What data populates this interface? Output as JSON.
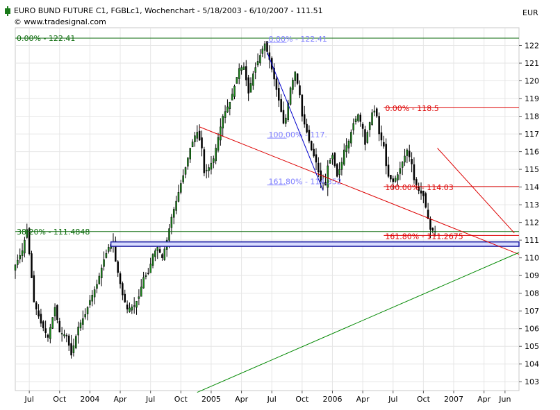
{
  "header": {
    "title": "EURO BUND FUTURE C1, FGBLc1, Wochenchart - 5/18/2003 - 6/10/2007 - 111.51",
    "source": "© www.tradesignal.com",
    "currency": "EUR"
  },
  "chart_data": {
    "type": "candlestick",
    "x_ticks": [
      {
        "label": "Jul",
        "week": 6
      },
      {
        "label": "Oct",
        "week": 19
      },
      {
        "label": "2004",
        "week": 32
      },
      {
        "label": "Apr",
        "week": 45
      },
      {
        "label": "Jul",
        "week": 58
      },
      {
        "label": "Oct",
        "week": 71
      },
      {
        "label": "2005",
        "week": 84
      },
      {
        "label": "Apr",
        "week": 97
      },
      {
        "label": "Jul",
        "week": 110
      },
      {
        "label": "Oct",
        "week": 123
      },
      {
        "label": "2006",
        "week": 136
      },
      {
        "label": "Apr",
        "week": 149
      },
      {
        "label": "Jul",
        "week": 162
      },
      {
        "label": "Oct",
        "week": 175
      },
      {
        "label": "2007",
        "week": 188
      },
      {
        "label": "Apr",
        "week": 201
      },
      {
        "label": "Jun",
        "week": 210
      }
    ],
    "y_ticks": [
      103,
      104,
      105,
      106,
      107,
      108,
      109,
      110,
      111,
      112,
      113,
      114,
      115,
      116,
      117,
      118,
      119,
      120,
      121,
      122
    ],
    "ylim": [
      102.5,
      123.0
    ],
    "xlim": [
      0,
      216
    ],
    "grid": true,
    "keypoints": [
      [
        0,
        109.6
      ],
      [
        3,
        110.4
      ],
      [
        5,
        111.6
      ],
      [
        8,
        107.5
      ],
      [
        11,
        106.3
      ],
      [
        14,
        105.5
      ],
      [
        17,
        107.2
      ],
      [
        19,
        105.8
      ],
      [
        22,
        105.6
      ],
      [
        24,
        104.5
      ],
      [
        27,
        106.1
      ],
      [
        30,
        106.8
      ],
      [
        32,
        107.6
      ],
      [
        35,
        108.5
      ],
      [
        38,
        109.9
      ],
      [
        40,
        110.6
      ],
      [
        42,
        110.9
      ],
      [
        43,
        109.8
      ],
      [
        46,
        107.9
      ],
      [
        48,
        107.1
      ],
      [
        51,
        107.3
      ],
      [
        53,
        107.8
      ],
      [
        55,
        108.9
      ],
      [
        57,
        109.1
      ],
      [
        59,
        110.2
      ],
      [
        61,
        110.6
      ],
      [
        63,
        110.0
      ],
      [
        65,
        111.0
      ],
      [
        67,
        112.3
      ],
      [
        69,
        113.2
      ],
      [
        71,
        114.2
      ],
      [
        73,
        115.1
      ],
      [
        75,
        116.2
      ],
      [
        77,
        116.9
      ],
      [
        78,
        117.1
      ],
      [
        80,
        116.2
      ],
      [
        81,
        114.8
      ],
      [
        83,
        115.1
      ],
      [
        85,
        115.6
      ],
      [
        87,
        116.8
      ],
      [
        89,
        118.0
      ],
      [
        92,
        118.8
      ],
      [
        94,
        119.7
      ],
      [
        96,
        120.7
      ],
      [
        98,
        120.8
      ],
      [
        100,
        119.3
      ],
      [
        102,
        120.4
      ],
      [
        104,
        121.1
      ],
      [
        106,
        121.8
      ],
      [
        107,
        122.1
      ],
      [
        109,
        121.2
      ],
      [
        111,
        120.1
      ],
      [
        113,
        118.9
      ],
      [
        115,
        117.6
      ],
      [
        116,
        117.9
      ],
      [
        118,
        119.6
      ],
      [
        120,
        120.5
      ],
      [
        122,
        119.2
      ],
      [
        123,
        118.0
      ],
      [
        125,
        117.1
      ],
      [
        127,
        116.1
      ],
      [
        129,
        115.4
      ],
      [
        131,
        114.3
      ],
      [
        133,
        114.1
      ],
      [
        134,
        115.2
      ],
      [
        136,
        115.8
      ],
      [
        138,
        114.6
      ],
      [
        140,
        115.4
      ],
      [
        141,
        116.1
      ],
      [
        143,
        116.6
      ],
      [
        145,
        117.6
      ],
      [
        147,
        118.1
      ],
      [
        149,
        117.3
      ],
      [
        150,
        116.4
      ],
      [
        151,
        117.1
      ],
      [
        153,
        118.2
      ],
      [
        154,
        118.3
      ],
      [
        155,
        118.0
      ],
      [
        156,
        117.0
      ],
      [
        158,
        116.3
      ],
      [
        159,
        115.2
      ],
      [
        160,
        114.6
      ],
      [
        162,
        114.3
      ],
      [
        164,
        114.7
      ],
      [
        166,
        115.4
      ],
      [
        168,
        116.1
      ],
      [
        170,
        115.3
      ],
      [
        171,
        114.4
      ],
      [
        173,
        113.8
      ],
      [
        175,
        113.5
      ],
      [
        177,
        112.2
      ],
      [
        178,
        111.6
      ],
      [
        180,
        111.5
      ]
    ],
    "volume_range": [
      0.15,
      0.85
    ],
    "fib_levels": [
      {
        "label": "0.00% - 122.41",
        "value": 122.41,
        "color": "#0a6a0a",
        "scope": "full"
      },
      {
        "label": "38.20% - 111.4848",
        "value": 111.4848,
        "color": "#0a6a0a",
        "scope": "full"
      },
      {
        "label": "0.00% - 122.41",
        "value": 122.41,
        "color": "#8080ff",
        "scope": "blue"
      },
      {
        "label": "100.00% - 117.",
        "value": 117.0,
        "color": "#8080ff",
        "scope": "blue"
      },
      {
        "label": "161.80% - 114.352",
        "value": 114.352,
        "color": "#8080ff",
        "scope": "blue"
      },
      {
        "label": "0.00% - 118.5",
        "value": 118.5,
        "color": "#dd0000",
        "scope": "red"
      },
      {
        "label": "100.00% - 114.03",
        "value": 114.03,
        "color": "#dd0000",
        "scope": "red"
      },
      {
        "label": "161.80% - 111.2675",
        "value": 111.2675,
        "color": "#dd0000",
        "scope": "red"
      }
    ],
    "support_band": [
      110.65,
      110.9
    ],
    "trendlines": [
      {
        "color": "#dd0000",
        "from": [
          79,
          117.4
        ],
        "to": [
          216,
          110.2
        ]
      },
      {
        "color": "#008800",
        "from": [
          78,
          102.4
        ],
        "to": [
          216,
          110.3
        ]
      },
      {
        "color": "#0000cc",
        "from": [
          108,
          121.6
        ],
        "to": [
          132,
          113.8
        ]
      },
      {
        "color": "#dd0000",
        "from": [
          181,
          116.2
        ],
        "to": [
          214,
          111.4
        ]
      }
    ]
  }
}
